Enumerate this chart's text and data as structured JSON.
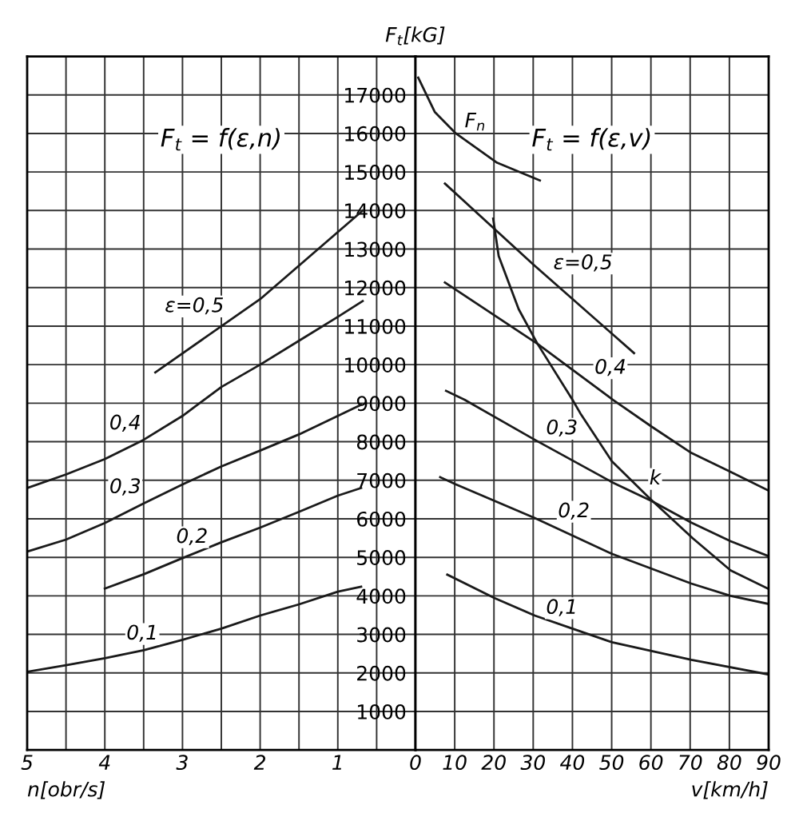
{
  "chart_data": [
    {
      "type": "line",
      "title": "F$_{t}$ = f(ε,n)",
      "xlabel": "n[obr/s]",
      "ylabel": "F$_{t}$[kG]",
      "xlim": [
        5,
        0
      ],
      "xticks": [
        5,
        {
          "value": 4.5,
          "label": null
        },
        4,
        {
          "value": 3.5,
          "label": null
        },
        3,
        {
          "value": 2.5,
          "label": null
        },
        2,
        {
          "value": 1.5,
          "label": null
        },
        1,
        {
          "value": 0.5,
          "label": null
        }
      ],
      "ylim": [
        0,
        18000
      ],
      "yticks": [
        1000,
        2000,
        3000,
        4000,
        5000,
        6000,
        7000,
        8000,
        9000,
        10000,
        11000,
        12000,
        13000,
        14000,
        15000,
        16000,
        17000
      ],
      "grid": true,
      "line_style": "solid",
      "marker": "none",
      "series": [
        {
          "name": "ε=0,5",
          "color": "#1a1a1a",
          "x": [
            3.35,
            2,
            0.68
          ],
          "values": [
            9800,
            11700,
            14000
          ]
        },
        {
          "name": "0,4",
          "color": "#1a1a1a",
          "x": [
            5,
            4.5,
            4,
            3.5,
            3,
            2.5,
            2,
            1.5,
            1,
            0.68
          ],
          "values": [
            6800,
            7150,
            7550,
            8050,
            8670,
            9420,
            10000,
            10620,
            11240,
            11650
          ]
        },
        {
          "name": "0,3",
          "color": "#1a1a1a",
          "x": [
            5,
            4.5,
            4,
            3.5,
            3,
            2.5,
            2,
            1.5,
            1,
            0.7
          ],
          "values": [
            5150,
            5460,
            5890,
            6400,
            6890,
            7360,
            7770,
            8190,
            8670,
            8960
          ]
        },
        {
          "name": "0,2",
          "color": "#1a1a1a",
          "x": [
            4,
            3.5,
            3,
            2.5,
            2,
            1.5,
            1,
            0.7
          ],
          "values": [
            4190,
            4560,
            4980,
            5390,
            5770,
            6180,
            6600,
            6800
          ]
        },
        {
          "name": "0,1",
          "color": "#1a1a1a",
          "x": [
            5,
            4.5,
            4,
            3.5,
            3,
            2.5,
            2,
            1.5,
            1,
            0.7
          ],
          "values": [
            2030,
            2200,
            2380,
            2590,
            2860,
            3150,
            3490,
            3780,
            4110,
            4240
          ]
        }
      ]
    },
    {
      "type": "line",
      "title": "F$_{t}$ = f(ε,v)",
      "xlabel": "v[km/h]",
      "xlim": [
        0,
        90
      ],
      "xticks": [
        0,
        10,
        20,
        30,
        40,
        50,
        60,
        70,
        80,
        90
      ],
      "ylim": [
        0,
        18000
      ],
      "yticks": [
        1000,
        2000,
        3000,
        4000,
        5000,
        6000,
        7000,
        8000,
        9000,
        10000,
        11000,
        12000,
        13000,
        14000,
        15000,
        16000,
        17000
      ],
      "tick_labels": "x",
      "grid": true,
      "line_style": "solid",
      "marker": "none",
      "series": [
        {
          "name": "F$_{n}$",
          "color": "#1a1a1a",
          "x": [
            0.7,
            4.9,
            10.3,
            20.8,
            31.7
          ],
          "values": [
            17450,
            16560,
            16000,
            15240,
            14780
          ]
        },
        {
          "name": "k",
          "color": "#1a1a1a",
          "x": [
            19.8,
            21.2,
            26.3,
            31.1,
            40,
            42,
            50,
            59.7,
            70.7,
            80.3,
            90
          ],
          "values": [
            13790,
            12820,
            11440,
            10540,
            9090,
            8740,
            7500,
            6530,
            5490,
            4660,
            4180
          ]
        },
        {
          "name": "ε=0,5",
          "color": "#1a1a1a",
          "x": [
            7.5,
            30,
            55.7
          ],
          "values": [
            14700,
            12600,
            10300
          ]
        },
        {
          "name": "0,4",
          "color": "#1a1a1a",
          "x": [
            7.5,
            31.1,
            50.3,
            60.2,
            70.3,
            80.3,
            90
          ],
          "values": [
            12130,
            10540,
            9090,
            8390,
            7710,
            7220,
            6730
          ]
        },
        {
          "name": "0,3",
          "color": "#1a1a1a",
          "x": [
            7.8,
            12.5,
            30.4,
            50.3,
            60.2,
            70.3,
            80.3,
            90
          ],
          "values": [
            9320,
            9090,
            8050,
            6940,
            6460,
            5900,
            5420,
            5030
          ]
        },
        {
          "name": "0,2",
          "color": "#1a1a1a",
          "x": [
            6.3,
            10.1,
            30.4,
            50.3,
            70.3,
            80.3,
            90
          ],
          "values": [
            7080,
            6900,
            6020,
            5080,
            4320,
            4000,
            3790
          ]
        },
        {
          "name": "0,1",
          "color": "#1a1a1a",
          "x": [
            8.1,
            20.2,
            30.4,
            40.3,
            50.3,
            70.3,
            90
          ],
          "values": [
            4550,
            3940,
            3490,
            3140,
            2790,
            2340,
            1960
          ]
        }
      ]
    }
  ]
}
